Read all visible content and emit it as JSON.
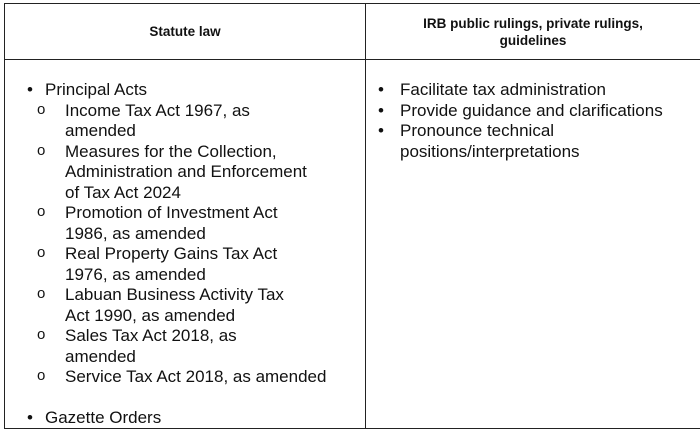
{
  "table": {
    "headers": [
      "Statute law",
      "IRB public rulings, private rulings, guidelines"
    ],
    "left": {
      "principal_acts": "Principal Acts",
      "acts": [
        "Income Tax Act 1967, as amended",
        "Measures for the Collection, Administration and Enforcement of Tax Act 2024",
        "Promotion of Investment Act 1986, as amended",
        "Real Property Gains Tax Act 1976, as amended",
        "Labuan Business Activity Tax Act 1990, as amended",
        "Sales Tax Act 2018, as amended",
        "Service Tax Act 2018, as amended"
      ],
      "gazette_orders": "Gazette Orders"
    },
    "right": [
      "Facilitate tax administration",
      "Provide guidance and clarifications",
      "Pronounce technical positions/interpretations"
    ],
    "bullet": "•",
    "sub_bullet": "o"
  }
}
